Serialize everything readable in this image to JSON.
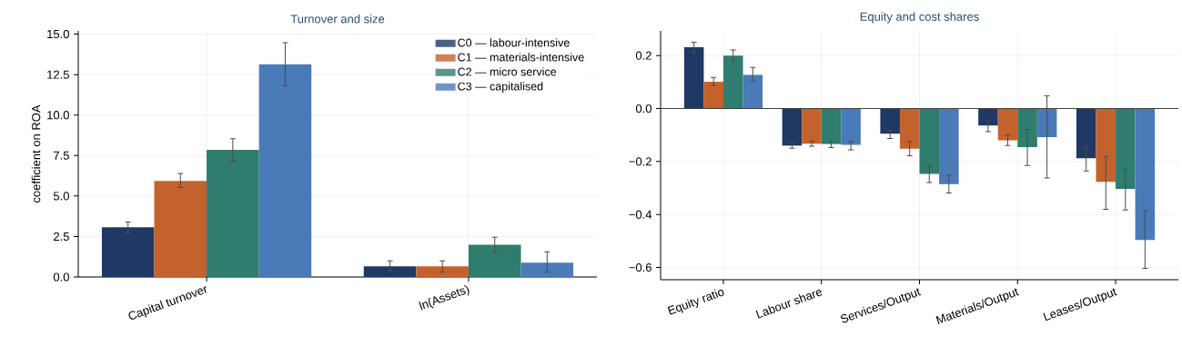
{
  "chart_data": [
    {
      "type": "bar",
      "title": "Turnover and size",
      "ylabel": "coefficient on ROA",
      "categories": [
        "Capital turnover",
        "ln(Assets)"
      ],
      "series": [
        {
          "name": "C0 — labour-intensive",
          "color": "#1f3864",
          "values": [
            3.07,
            0.66
          ],
          "errors": [
            [
              2.66,
              3.39
            ],
            [
              0.39,
              1.0
            ]
          ]
        },
        {
          "name": "C1 — materials-intensive",
          "color": "#c4622d",
          "values": [
            5.93,
            0.66
          ],
          "errors": [
            [
              5.52,
              6.39
            ],
            [
              0.3,
              1.0
            ]
          ]
        },
        {
          "name": "C2 — micro service",
          "color": "#2e7d6e",
          "values": [
            7.85,
            1.99
          ],
          "errors": [
            [
              7.17,
              8.54
            ],
            [
              1.51,
              2.45
            ]
          ]
        },
        {
          "name": "C3 — capitalised",
          "color": "#4a7ab8",
          "values": [
            13.14,
            0.89
          ],
          "errors": [
            [
              11.82,
              14.47
            ],
            [
              0.3,
              1.56
            ]
          ]
        }
      ],
      "ylim": [
        0,
        15.2
      ],
      "yticks": [
        {
          "value": 0,
          "label": "0.0"
        },
        {
          "value": 2.5,
          "label": "2.5"
        },
        {
          "value": 5,
          "label": "5.0"
        },
        {
          "value": 7.5,
          "label": "7.5"
        },
        {
          "value": 10,
          "label": "10.0"
        },
        {
          "value": 12.5,
          "label": "12.5"
        },
        {
          "value": 15,
          "label": "15.0"
        }
      ],
      "grid": true,
      "legend": "top right"
    },
    {
      "type": "bar",
      "title": "Equity and cost shares",
      "categories": [
        "Equity ratio",
        "Labour share",
        "Services/Output",
        "Materials/Output",
        "Leases/Output"
      ],
      "series": [
        {
          "color": "#1f3864",
          "values": [
            0.231,
            -0.14,
            -0.095,
            -0.064,
            -0.188
          ],
          "errors": [
            [
              0.212,
              0.25
            ],
            [
              -0.15,
              -0.13
            ],
            [
              -0.113,
              -0.082
            ],
            [
              -0.087,
              -0.046
            ],
            [
              -0.236,
              -0.146
            ]
          ]
        },
        {
          "color": "#c4622d",
          "values": [
            0.101,
            -0.133,
            -0.152,
            -0.12,
            -0.277
          ],
          "errors": [
            [
              0.088,
              0.117
            ],
            [
              -0.142,
              -0.123
            ],
            [
              -0.178,
              -0.123
            ],
            [
              -0.14,
              -0.1
            ],
            [
              -0.38,
              -0.181
            ]
          ]
        },
        {
          "color": "#2e7d6e",
          "values": [
            0.2,
            -0.134,
            -0.247,
            -0.146,
            -0.303
          ],
          "errors": [
            [
              0.181,
              0.221
            ],
            [
              -0.147,
              -0.124
            ],
            [
              -0.279,
              -0.218
            ],
            [
              -0.215,
              -0.079
            ],
            [
              -0.383,
              -0.23
            ]
          ]
        },
        {
          "color": "#4a7ab8",
          "values": [
            0.127,
            -0.137,
            -0.285,
            -0.108,
            -0.496
          ],
          "errors": [
            [
              0.103,
              0.155
            ],
            [
              -0.156,
              -0.124
            ],
            [
              -0.319,
              -0.251
            ],
            [
              -0.262,
              0.048
            ],
            [
              -0.603,
              -0.386
            ]
          ]
        }
      ],
      "ylim": [
        -0.646,
        0.293
      ],
      "yticks": [
        {
          "value": -0.6,
          "label": "−0.6"
        },
        {
          "value": -0.4,
          "label": "−0.4"
        },
        {
          "value": -0.2,
          "label": "−0.2"
        },
        {
          "value": 0,
          "label": "0.0"
        },
        {
          "value": 0.2,
          "label": "0.2"
        }
      ],
      "grid": true,
      "legend": false,
      "ref_lines": [
        {
          "axis": "y",
          "value": 0,
          "color": "#404040"
        }
      ]
    }
  ]
}
